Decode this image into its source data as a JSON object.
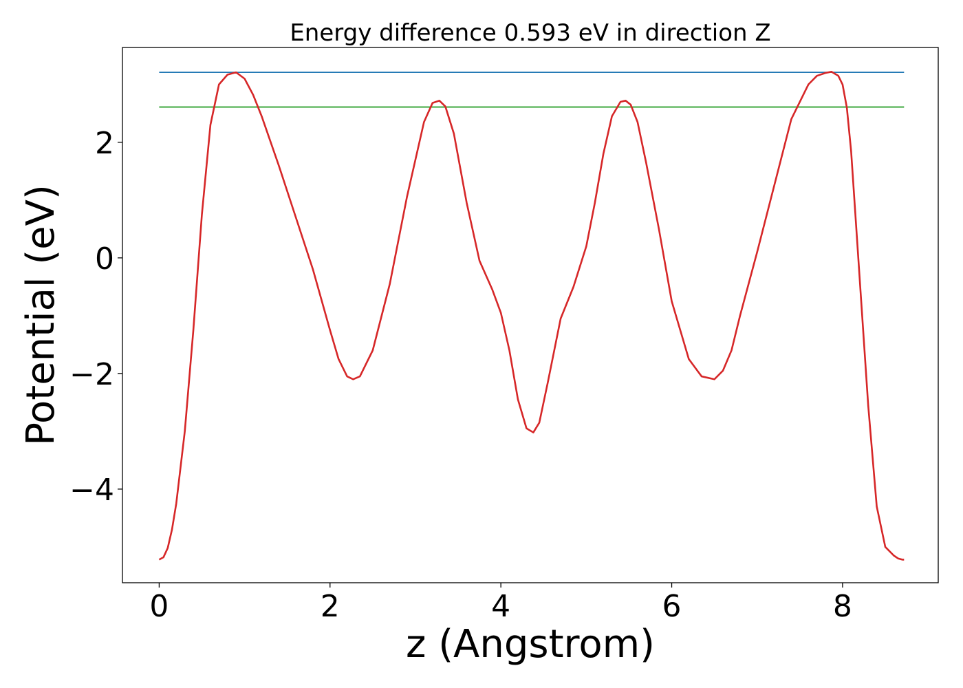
{
  "chart_data": {
    "type": "line",
    "title": "Energy difference 0.593 eV in direction Z",
    "xlabel": "z (Angstrom)",
    "ylabel": "Potential (eV)",
    "xlim": [
      -0.43,
      9.12
    ],
    "ylim": [
      -5.62,
      3.64
    ],
    "xticks": [
      0,
      2,
      4,
      6,
      8
    ],
    "yticks": [
      -4,
      -2,
      0,
      2
    ],
    "xtick_labels": [
      "0",
      "2",
      "4",
      "6",
      "8"
    ],
    "ytick_labels": [
      "−4",
      "−2",
      "0",
      "2"
    ],
    "grid": false,
    "series": [
      {
        "color": "#d62728",
        "x": [
          0,
          0.05,
          0.1,
          0.15,
          0.2,
          0.3,
          0.4,
          0.5,
          0.6,
          0.7,
          0.8,
          0.9,
          1.0,
          1.1,
          1.2,
          1.4,
          1.6,
          1.8,
          2.0,
          2.1,
          2.2,
          2.27,
          2.35,
          2.5,
          2.7,
          2.9,
          3.1,
          3.2,
          3.28,
          3.35,
          3.45,
          3.6,
          3.75,
          3.9,
          4.0,
          4.1,
          4.2,
          4.3,
          4.38,
          4.45,
          4.55,
          4.7,
          4.85,
          5.0,
          5.1,
          5.2,
          5.3,
          5.4,
          5.46,
          5.52,
          5.6,
          5.7,
          5.85,
          6.0,
          6.2,
          6.35,
          6.5,
          6.6,
          6.7,
          6.8,
          7.0,
          7.2,
          7.4,
          7.6,
          7.7,
          7.8,
          7.87,
          7.95,
          8.0,
          8.05,
          8.1,
          8.2,
          8.3,
          8.4,
          8.5,
          8.6,
          8.65,
          8.7,
          8.72
        ],
        "values": [
          -5.22,
          -5.18,
          -5.02,
          -4.7,
          -4.25,
          -3.0,
          -1.25,
          0.75,
          2.3,
          3.0,
          3.17,
          3.21,
          3.1,
          2.82,
          2.45,
          1.6,
          0.7,
          -0.2,
          -1.25,
          -1.75,
          -2.05,
          -2.1,
          -2.05,
          -1.6,
          -0.45,
          1.05,
          2.35,
          2.68,
          2.72,
          2.62,
          2.15,
          0.95,
          -0.05,
          -0.55,
          -0.95,
          -1.6,
          -2.45,
          -2.95,
          -3.02,
          -2.85,
          -2.15,
          -1.05,
          -0.5,
          0.2,
          0.95,
          1.8,
          2.45,
          2.7,
          2.72,
          2.65,
          2.35,
          1.65,
          0.5,
          -0.75,
          -1.75,
          -2.05,
          -2.1,
          -1.95,
          -1.6,
          -1.0,
          0.1,
          1.25,
          2.4,
          3.0,
          3.15,
          3.2,
          3.22,
          3.15,
          3.0,
          2.6,
          1.85,
          -0.35,
          -2.55,
          -4.3,
          -5.0,
          -5.15,
          -5.2,
          -5.22,
          -5.22
        ]
      },
      {
        "color": "#1f77b4",
        "x": [
          0,
          8.72
        ],
        "values": [
          3.21,
          3.21
        ]
      },
      {
        "color": "#2ca02c",
        "x": [
          0,
          8.72
        ],
        "values": [
          2.61,
          2.61
        ]
      }
    ]
  }
}
